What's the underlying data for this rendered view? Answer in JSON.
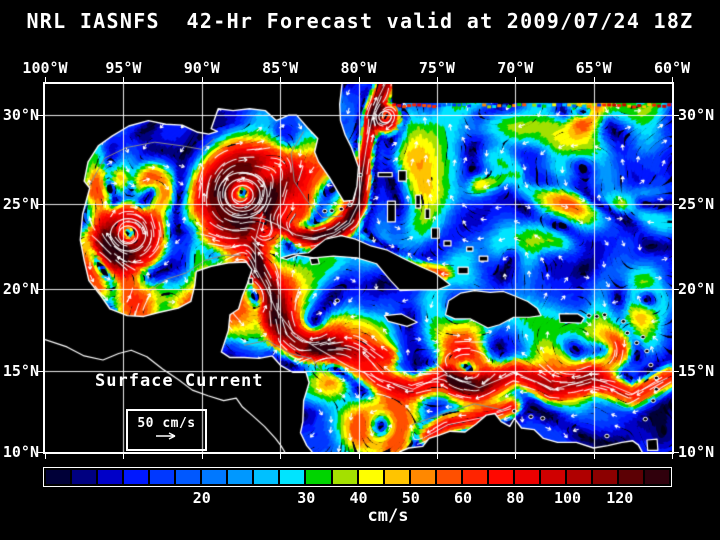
{
  "title": "NRL IASNFS  42-Hr Forecast valid at 2009/07/24 18Z",
  "axes": {
    "lon_labels": [
      "100°W",
      "95°W",
      "90°W",
      "85°W",
      "80°W",
      "75°W",
      "70°W",
      "65°W",
      "60°W"
    ],
    "lat_labels": [
      "30°N",
      "25°N",
      "20°N",
      "15°N",
      "10°N"
    ]
  },
  "annotation": {
    "label": "Surface Current",
    "scale_value": "50 cm/s"
  },
  "colorbar": {
    "unit": "cm/s",
    "tick_labels": [
      "20",
      "30",
      "40",
      "50",
      "60",
      "80",
      "100",
      "120"
    ],
    "tick_positions_24ths": [
      6,
      10,
      12,
      14,
      16,
      18,
      20,
      22
    ],
    "swatch_colors": [
      "#000038",
      "#000080",
      "#0000c8",
      "#0018ff",
      "#0038ff",
      "#0058ff",
      "#0078ff",
      "#0098ff",
      "#00c0ff",
      "#00e4ff",
      "#00d400",
      "#a4e000",
      "#ffff00",
      "#ffc400",
      "#ff8800",
      "#ff5000",
      "#ff2400",
      "#ff0800",
      "#ec0000",
      "#d00000",
      "#b00000",
      "#8c0000",
      "#5c0004",
      "#30000c"
    ]
  },
  "colors": {
    "background": "#000000",
    "text": "#ffffff",
    "frame": "#ffffff",
    "grid": "#ffffff",
    "land": "#000000",
    "coastline": "#ffffff",
    "ocean": "#000014",
    "bathymetry": "#8a8a8a"
  }
}
